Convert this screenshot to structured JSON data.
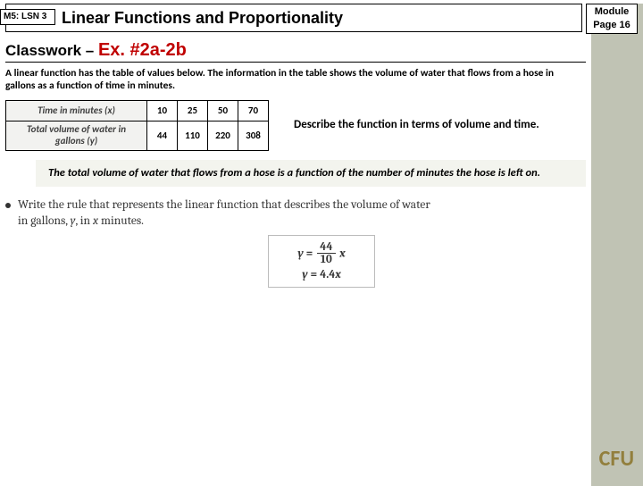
{
  "header": {
    "lesson_tag": "M5: LSN 3",
    "title": "Linear Functions and Proportionality",
    "module_label": "Module",
    "page_label": "Page 16"
  },
  "classwork": {
    "lead": "Classwork – ",
    "topic": "Ex. #2a-2b"
  },
  "intro": "A linear function has the table of values below. The information in the table shows the volume of water that flows from a hose in gallons as a function of time in minutes.",
  "table": {
    "row1_header": "Time in minutes  (x)",
    "row2_header_a": "Total volume of water in",
    "row2_header_b": "gallons   (y)",
    "r1": [
      "10",
      "25",
      "50",
      "70"
    ],
    "r2": [
      "44",
      "110",
      "220",
      "308"
    ]
  },
  "describe": "Describe the function in terms of volume and time.",
  "answer": "The total volume of water that flows from a hose is a function of the number of minutes the hose is left on.",
  "rule_prompt_a": "Write the rule that represents the linear function that describes the volume of water",
  "rule_prompt_b": "in gallons, ",
  "rule_prompt_var1": "y",
  "rule_prompt_c": ", in ",
  "rule_prompt_var2": "x",
  "rule_prompt_d": " minutes.",
  "formula": {
    "y": "y",
    "eq": " = ",
    "num": "44",
    "den": "10",
    "x": "x",
    "line2_y": "y",
    "line2_eq": " = 4.4",
    "line2_x": "x"
  },
  "cfu": "CFU",
  "colors": {
    "strip": "#c0c3b4",
    "classwork_red": "#c00000",
    "answer_bg": "#f3f4ee",
    "cfu_color": "#927f3d"
  }
}
